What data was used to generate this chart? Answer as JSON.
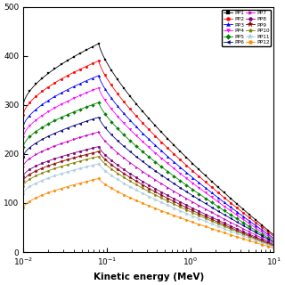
{
  "series": [
    {
      "name": "PP1",
      "color": "#000000",
      "marker": "s",
      "peak_val": 425,
      "low_val": 300,
      "high_val": 35
    },
    {
      "name": "PP2",
      "color": "#ff0000",
      "marker": "o",
      "peak_val": 390,
      "low_val": 280,
      "high_val": 32
    },
    {
      "name": "PP3",
      "color": "#0000ff",
      "marker": "^",
      "peak_val": 360,
      "low_val": 255,
      "high_val": 28
    },
    {
      "name": "PP4",
      "color": "#ff00ff",
      "marker": "v",
      "peak_val": 335,
      "low_val": 235,
      "high_val": 25
    },
    {
      "name": "PP5",
      "color": "#008000",
      "marker": "D",
      "peak_val": 305,
      "low_val": 215,
      "high_val": 22
    },
    {
      "name": "PP6",
      "color": "#000080",
      "marker": "<",
      "peak_val": 275,
      "low_val": 195,
      "high_val": 20
    },
    {
      "name": "PP7",
      "color": "#cc00cc",
      "marker": ">",
      "peak_val": 245,
      "low_val": 175,
      "high_val": 17
    },
    {
      "name": "PP8",
      "color": "#800080",
      "marker": "o",
      "peak_val": 215,
      "low_val": 155,
      "high_val": 15
    },
    {
      "name": "PP9",
      "color": "#8b0000",
      "marker": "*",
      "peak_val": 205,
      "low_val": 145,
      "high_val": 13
    },
    {
      "name": "PP10",
      "color": "#808000",
      "marker": "p",
      "peak_val": 195,
      "low_val": 135,
      "high_val": 12
    },
    {
      "name": "PP11",
      "color": "#aaccdd",
      "marker": "*",
      "peak_val": 180,
      "low_val": 120,
      "high_val": 10
    },
    {
      "name": "PP12",
      "color": "#ff8c00",
      "marker": "o",
      "peak_val": 150,
      "low_val": 90,
      "high_val": 8
    }
  ],
  "xlabel": "Kinetic energy (MeV)",
  "ylim": [
    0,
    500
  ],
  "xlim_low": 0.01,
  "xlim_high": 10,
  "peak_energy": 0.08,
  "bg_color": "#ffffff"
}
